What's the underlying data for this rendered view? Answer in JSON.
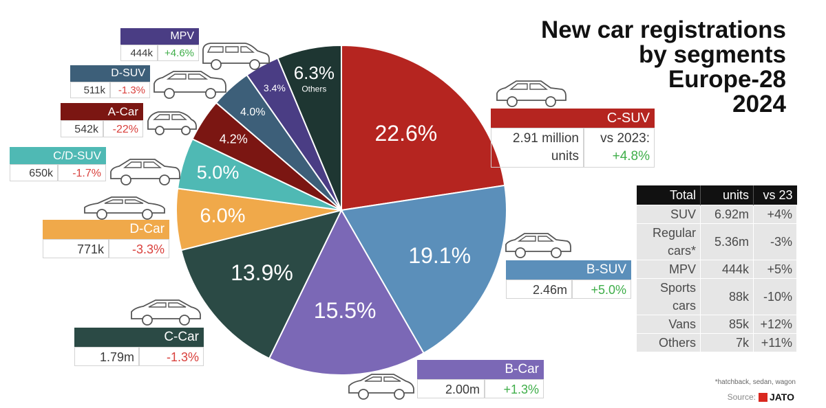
{
  "title": "New car registrations\nby segments\nEurope-28\n2024",
  "chart_data": {
    "type": "pie",
    "slices": [
      {
        "key": "csuv",
        "label": "C-SUV",
        "pct": "22.6%",
        "value": 22.6,
        "units": "2.91 million units",
        "change_label": "vs 2023:",
        "change": "+4.8%",
        "color": "#b52520"
      },
      {
        "key": "bsuv",
        "label": "B-SUV",
        "pct": "19.1%",
        "value": 19.1,
        "units": "2.46m",
        "change": "+5.0%",
        "color": "#5b8fba"
      },
      {
        "key": "bcar",
        "label": "B-Car",
        "pct": "15.5%",
        "value": 15.5,
        "units": "2.00m",
        "change": "+1.3%",
        "color": "#7b68b6"
      },
      {
        "key": "ccar",
        "label": "C-Car",
        "pct": "13.9%",
        "value": 13.9,
        "units": "1.79m",
        "change": "-1.3%",
        "color": "#2b4a45"
      },
      {
        "key": "dcar",
        "label": "D-Car",
        "pct": "6.0%",
        "value": 6.0,
        "units": "771k",
        "change": "-3.3%",
        "color": "#f0a94a"
      },
      {
        "key": "cdsuv",
        "label": "C/D-SUV",
        "pct": "5.0%",
        "value": 5.0,
        "units": "650k",
        "change": "-1.7%",
        "color": "#4fb9b4"
      },
      {
        "key": "acar",
        "label": "A-Car",
        "pct": "4.2%",
        "value": 4.2,
        "units": "542k",
        "change": "-22%",
        "color": "#7b1612"
      },
      {
        "key": "dsuv",
        "label": "D-SUV",
        "pct": "4.0%",
        "value": 4.0,
        "units": "511k",
        "change": "-1.3%",
        "color": "#3d5f79"
      },
      {
        "key": "mpv",
        "label": "MPV",
        "pct": "3.4%",
        "value": 3.4,
        "units": "444k",
        "change": "+4.6%",
        "color": "#4a3d84"
      },
      {
        "key": "others",
        "label": "Others",
        "pct": "6.3%",
        "value": 6.3,
        "color": "#1e3632"
      }
    ]
  },
  "totals": {
    "headers": [
      "Total",
      "units",
      "vs 23"
    ],
    "rows": [
      [
        "SUV",
        "6.92m",
        "+4%"
      ],
      [
        "Regular\ncars*",
        "5.36m",
        "-3%"
      ],
      [
        "MPV",
        "444k",
        "+5%"
      ],
      [
        "Sports\ncars",
        "88k",
        "-10%"
      ],
      [
        "Vans",
        "85k",
        "+12%"
      ],
      [
        "Others",
        "7k",
        "+11%"
      ]
    ]
  },
  "footnote": "*hatchback, sedan, wagon",
  "source_label": "Source:",
  "source_brand": "JATO"
}
